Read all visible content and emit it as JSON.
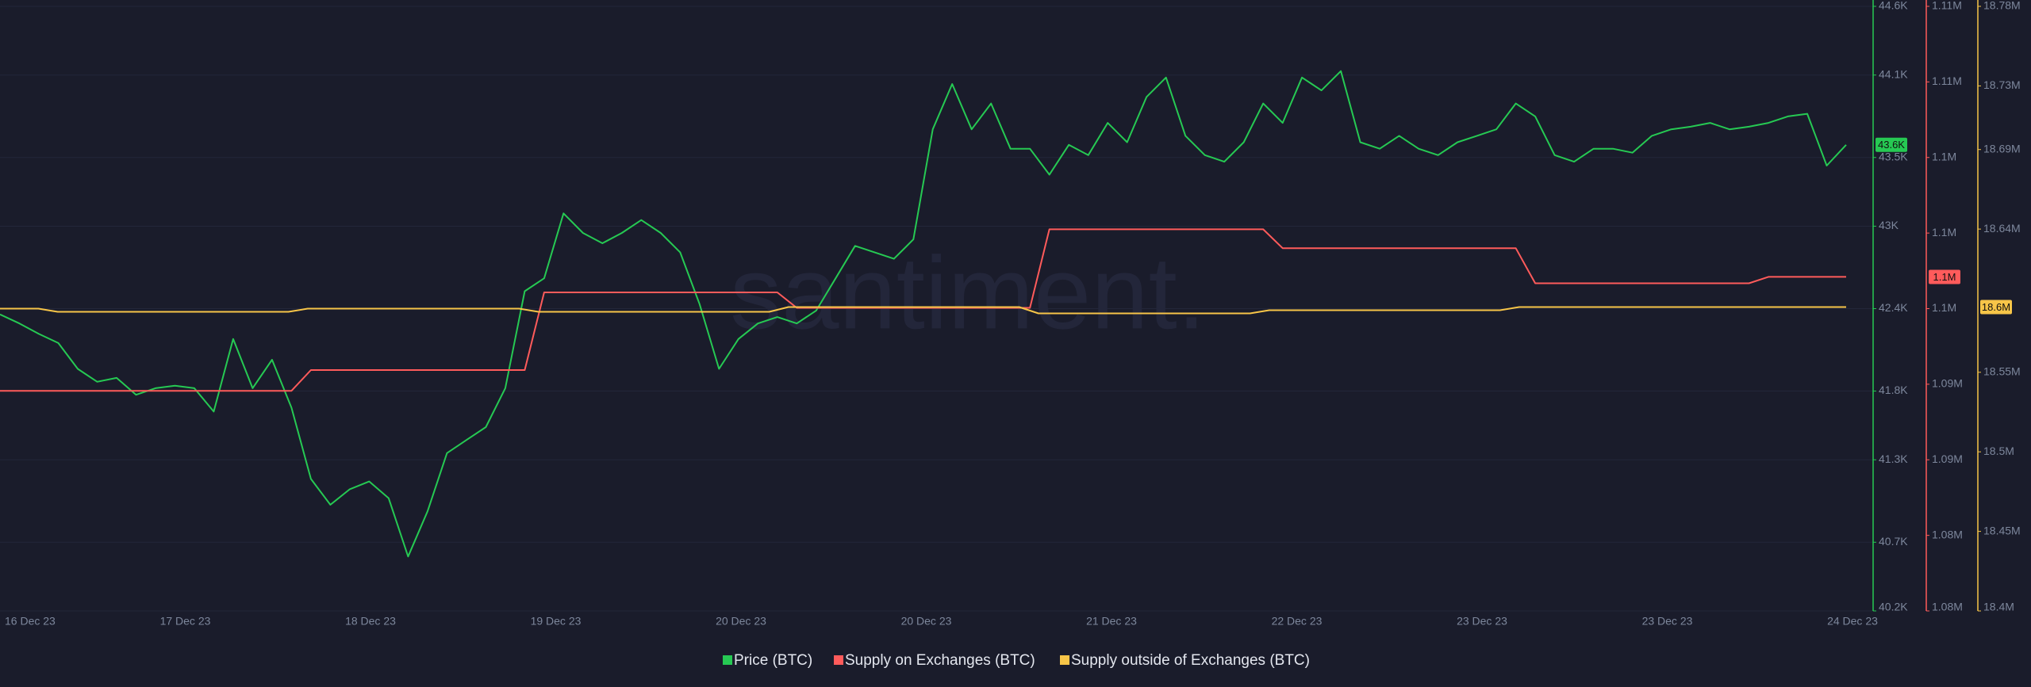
{
  "chart_data": {
    "type": "line",
    "watermark": "santiment.",
    "x_labels": [
      "16 Dec 23",
      "17 Dec 23",
      "18 Dec 23",
      "19 Dec 23",
      "20 Dec 23",
      "20 Dec 23",
      "21 Dec 23",
      "22 Dec 23",
      "23 Dec 23",
      "23 Dec 23",
      "24 Dec 23"
    ],
    "series": [
      {
        "name": "Price (BTC)",
        "color": "#26c953",
        "axis": "y",
        "last_label": "43.6K",
        "values": [
          42358,
          42292,
          42216,
          42150,
          41962,
          41868,
          41896,
          41773,
          41821,
          41839,
          41821,
          41651,
          42179,
          41821,
          42028,
          41679,
          41161,
          40973,
          41086,
          41142,
          41020,
          40596,
          40925,
          41349,
          41444,
          41538,
          41821,
          42527,
          42621,
          43093,
          42951,
          42876,
          42951,
          43045,
          42951,
          42810,
          42433,
          41962,
          42179,
          42292,
          42339,
          42292,
          42386,
          42621,
          42857,
          42810,
          42763,
          42904,
          43705,
          44035,
          43705,
          43893,
          43564,
          43564,
          43375,
          43592,
          43517,
          43752,
          43611,
          43941,
          44082,
          43658,
          43517,
          43469,
          43611,
          43893,
          43752,
          44082,
          43988,
          44129,
          43611,
          43564,
          43658,
          43564,
          43517,
          43611,
          43658,
          43705,
          43893,
          43799,
          43517,
          43469,
          43564,
          43564,
          43535,
          43658,
          43705,
          43724,
          43752,
          43705,
          43724,
          43752,
          43799,
          43818,
          43441,
          43592
        ]
      },
      {
        "name": "Supply on Exchanges (BTC)",
        "color": "#ff5b5b",
        "axis": "y2",
        "last_label": "1.1M",
        "values": [
          1091150,
          1091150,
          1091150,
          1091150,
          1091150,
          1091150,
          1091150,
          1091150,
          1091150,
          1091150,
          1091150,
          1091150,
          1091150,
          1091150,
          1091150,
          1091150,
          1092250,
          1092250,
          1092250,
          1092250,
          1092250,
          1092250,
          1092250,
          1092250,
          1092250,
          1092250,
          1092250,
          1092250,
          1096360,
          1096360,
          1096360,
          1096360,
          1096360,
          1096360,
          1096360,
          1096360,
          1096360,
          1096360,
          1096360,
          1096360,
          1096360,
          1095540,
          1095540,
          1095540,
          1095540,
          1095540,
          1095540,
          1095540,
          1095540,
          1095540,
          1095540,
          1095540,
          1095540,
          1095540,
          1099700,
          1099700,
          1099700,
          1099700,
          1099700,
          1099700,
          1099700,
          1099700,
          1099700,
          1099700,
          1099700,
          1099700,
          1098700,
          1098700,
          1098700,
          1098700,
          1098700,
          1098700,
          1098700,
          1098700,
          1098700,
          1098700,
          1098700,
          1098700,
          1098700,
          1096840,
          1096840,
          1096840,
          1096840,
          1096840,
          1096840,
          1096840,
          1096840,
          1096840,
          1096840,
          1096840,
          1096840,
          1097180,
          1097180,
          1097180,
          1097180,
          1097180
        ]
      },
      {
        "name": "Supply outside of Exchanges (BTC)",
        "color": "#f7c548",
        "axis": "y3",
        "last_label": "18.6M",
        "values": [
          18590000,
          18590000,
          18590000,
          18588000,
          18588000,
          18588000,
          18588000,
          18588000,
          18588000,
          18588000,
          18588000,
          18588000,
          18588000,
          18588000,
          18588000,
          18588000,
          18590000,
          18590000,
          18590000,
          18590000,
          18590000,
          18590000,
          18590000,
          18590000,
          18590000,
          18590000,
          18590000,
          18590000,
          18588000,
          18588000,
          18588000,
          18588000,
          18588000,
          18588000,
          18588000,
          18588000,
          18588000,
          18588000,
          18588000,
          18588000,
          18588000,
          18591000,
          18591000,
          18591000,
          18591000,
          18591000,
          18591000,
          18591000,
          18591000,
          18591000,
          18591000,
          18591000,
          18591000,
          18591000,
          18587000,
          18587000,
          18587000,
          18587000,
          18587000,
          18587000,
          18587000,
          18587000,
          18587000,
          18587000,
          18587000,
          18587000,
          18589000,
          18589000,
          18589000,
          18589000,
          18589000,
          18589000,
          18589000,
          18589000,
          18589000,
          18589000,
          18589000,
          18589000,
          18589000,
          18591000,
          18591000,
          18591000,
          18591000,
          18591000,
          18591000,
          18591000,
          18591000,
          18591000,
          18591000,
          18591000,
          18591000,
          18591000,
          18591000,
          18591000,
          18591000,
          18591000,
          18591000
        ]
      }
    ],
    "ylim": [
      40200,
      44600
    ],
    "yticks": [
      {
        "value": 40200,
        "label": "40.2K"
      },
      {
        "value": 40700,
        "label": "40.7K"
      },
      {
        "value": 41300,
        "label": "41.3K"
      },
      {
        "value": 41800,
        "label": "41.8K"
      },
      {
        "value": 42400,
        "label": "42.4K"
      },
      {
        "value": 43000,
        "label": "43K"
      },
      {
        "value": 43500,
        "label": "43.5K"
      },
      {
        "value": 44100,
        "label": "44.1K"
      },
      {
        "value": 44600,
        "label": "44.6K"
      }
    ],
    "y2lim": [
      1079500,
      1111500
    ],
    "y2ticks": [
      {
        "value": 1079500,
        "label": "1.08M"
      },
      {
        "value": 1083500,
        "label": "1.08M"
      },
      {
        "value": 1087500,
        "label": "1.09M"
      },
      {
        "value": 1091500,
        "label": "1.09M"
      },
      {
        "value": 1095500,
        "label": "1.1M"
      },
      {
        "value": 1099500,
        "label": "1.1M"
      },
      {
        "value": 1103500,
        "label": "1.1M"
      },
      {
        "value": 1107500,
        "label": "1.11M"
      },
      {
        "value": 1111500,
        "label": "1.11M"
      }
    ],
    "y3lim": [
      18400000,
      18780000
    ],
    "y3ticks": [
      {
        "value": 18400000,
        "label": "18.4M"
      },
      {
        "value": 18450000,
        "label": "18.45M"
      },
      {
        "value": 18500000,
        "label": "18.5M"
      },
      {
        "value": 18550000,
        "label": "18.55M"
      },
      {
        "value": 18640000,
        "label": "18.64M"
      },
      {
        "value": 18690000,
        "label": "18.69M"
      },
      {
        "value": 18730000,
        "label": "18.73M"
      },
      {
        "value": 18780000,
        "label": "18.78M"
      }
    ],
    "grid": true
  }
}
